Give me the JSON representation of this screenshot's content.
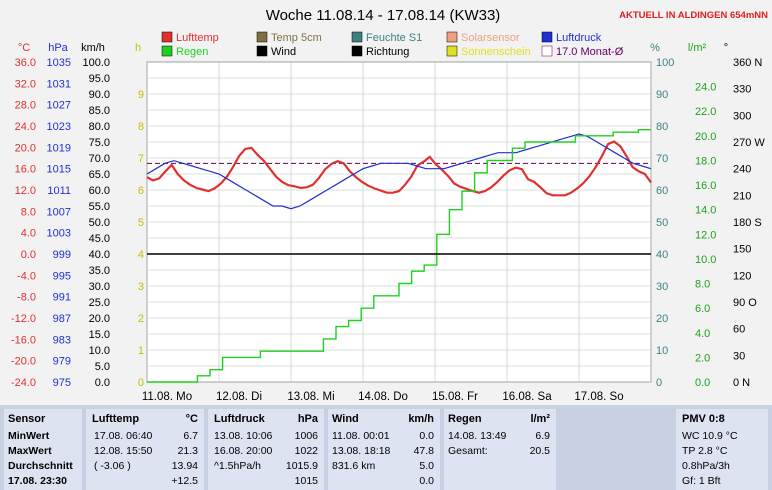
{
  "title": "Woche 11.08.14 - 17.08.14 (KW33)",
  "current_link": "AKTUELL IN ALDINGEN 654mNN",
  "legend": [
    {
      "label": "Lufttemp",
      "color": "#e03030"
    },
    {
      "label": "Temp 5cm",
      "color": "#807040"
    },
    {
      "label": "Feuchte S1",
      "color": "#408080"
    },
    {
      "label": "Solarsensor",
      "color": "#f0a080"
    },
    {
      "label": "Luftdruck",
      "color": "#2030d0"
    },
    {
      "label": "Regen",
      "color": "#20d020"
    },
    {
      "label": "Wind",
      "color": "#000000"
    },
    {
      "label": "Richtung",
      "color": "#000000"
    },
    {
      "label": "Sonnenschein",
      "color": "#e0e020"
    },
    {
      "label": "17.0 Monat-Ø",
      "color": "#600060"
    }
  ],
  "axis_units": {
    "temp": "°C",
    "pressure": "hPa",
    "wind": "km/h",
    "hours": "h",
    "humidity": "%",
    "rain": "l/m²",
    "direction": "°"
  },
  "chart_data": {
    "type": "line",
    "title": "Woche 11.08.14 - 17.08.14 (KW33)",
    "x_labels": [
      "11.08. Mo",
      "12.08. Di",
      "13.08. Mi",
      "14.08. Do",
      "15.08. Fr",
      "16.08. Sa",
      "17.08. So"
    ],
    "axes": {
      "temp": {
        "unit": "°C",
        "range": [
          -24.0,
          36.0
        ],
        "ticks": [
          "36.0",
          "32.0",
          "28.0",
          "24.0",
          "20.0",
          "16.0",
          "12.0",
          "8.0",
          "4.0",
          "0.0",
          "-4.0",
          "-8.0",
          "-12.0",
          "-16.0",
          "-20.0",
          "-24.0"
        ]
      },
      "pressure": {
        "unit": "hPa",
        "range": [
          975,
          1035
        ],
        "ticks": [
          "1035",
          "1031",
          "1027",
          "1023",
          "1019",
          "1015",
          "1011",
          "1007",
          "1003",
          "999",
          "995",
          "991",
          "987",
          "983",
          "979",
          "975"
        ]
      },
      "wind": {
        "unit": "km/h",
        "range": [
          0,
          100
        ],
        "ticks": [
          "100.0",
          "95.0",
          "90.0",
          "85.0",
          "80.0",
          "75.0",
          "70.0",
          "65.0",
          "60.0",
          "55.0",
          "50.0",
          "45.0",
          "40.0",
          "35.0",
          "30.0",
          "25.0",
          "20.0",
          "15.0",
          "10.0",
          "5.0",
          "0.0"
        ]
      },
      "hours": {
        "unit": "h",
        "range": [
          0,
          10
        ],
        "ticks": [
          "9",
          "8",
          "7",
          "6",
          "5",
          "4",
          "3",
          "2",
          "1",
          "0"
        ]
      },
      "humidity": {
        "unit": "%",
        "range": [
          0,
          100
        ],
        "ticks": [
          "100",
          "90",
          "80",
          "70",
          "60",
          "50",
          "40",
          "30",
          "20",
          "10",
          "0"
        ]
      },
      "rain": {
        "unit": "l/m²",
        "range": [
          0,
          26
        ],
        "ticks": [
          "24.0",
          "22.0",
          "20.0",
          "18.0",
          "16.0",
          "14.0",
          "12.0",
          "10.0",
          "8.0",
          "6.0",
          "4.0",
          "2.0",
          "0.0"
        ]
      },
      "direction": {
        "unit": "°",
        "range": [
          0,
          360
        ],
        "ticks": [
          "360 N",
          "330",
          "300",
          "270 W",
          "240",
          "210",
          "180 S",
          "150",
          "120",
          "90 O",
          "60",
          "30",
          "0 N"
        ]
      }
    },
    "monthly_avg_temp": 17.0,
    "series": [
      {
        "name": "Lufttemp",
        "values": [
          14.4,
          13.8,
          14.2,
          15.5,
          16.7,
          15.0,
          13.8,
          13.0,
          12.4,
          12.1,
          11.8,
          12.3,
          13.2,
          14.5,
          16.3,
          18.4,
          19.7,
          19.9,
          18.6,
          17.5,
          16.0,
          14.5,
          13.5,
          12.9,
          12.7,
          12.4,
          12.5,
          13.0,
          14.3,
          15.9,
          16.9,
          17.4,
          17.0,
          15.5,
          14.4,
          13.5,
          12.8,
          12.3,
          11.9,
          11.5,
          11.5,
          11.8,
          13.0,
          14.5,
          16.6,
          17.3,
          18.2,
          16.8,
          15.8,
          14.6,
          13.2,
          12.6,
          12.2,
          11.8,
          11.5,
          11.8,
          12.5,
          13.5,
          14.7,
          15.7,
          16.2,
          15.9,
          14.0,
          13.5,
          12.5,
          11.4,
          11.0,
          11.0,
          11.0,
          11.5,
          12.3,
          13.3,
          14.6,
          16.3,
          18.3,
          20.6,
          21.1,
          20.2,
          18.4,
          16.3,
          15.5,
          15.0,
          13.4
        ]
      },
      {
        "name": "Luftdruck",
        "values": [
          1014,
          1015,
          1016,
          1016.5,
          1016,
          1015.5,
          1015,
          1014.5,
          1014,
          1013,
          1012,
          1011,
          1010,
          1009,
          1008,
          1008,
          1007.5,
          1008,
          1009,
          1010,
          1011,
          1012,
          1013,
          1014,
          1015,
          1015.5,
          1016,
          1016,
          1016,
          1016,
          1015.5,
          1015,
          1015,
          1015,
          1015.5,
          1016,
          1016.5,
          1017,
          1017.5,
          1018,
          1018,
          1018,
          1018.5,
          1019,
          1019.5,
          1020,
          1020.5,
          1021,
          1021.5,
          1021,
          1020,
          1019,
          1018,
          1017,
          1016,
          1015.5,
          1015
        ]
      },
      {
        "name": "Regen",
        "values": [
          0,
          0,
          0,
          0,
          0.5,
          1.0,
          2.0,
          2.0,
          2.0,
          2.5,
          2.5,
          2.5,
          2.5,
          2.5,
          3.5,
          4.5,
          5.0,
          6.0,
          7.0,
          7.0,
          8.0,
          9.0,
          9.5,
          12.0,
          14.0,
          15.5,
          17.0,
          18.0,
          18.0,
          19.0,
          19.5,
          19.5,
          19.5,
          19.5,
          20.0,
          20.0,
          20.0,
          20.3,
          20.3,
          20.5,
          20.5
        ]
      }
    ]
  },
  "panel": {
    "sensor": {
      "header": "Sensor",
      "rows": [
        "MinWert",
        "MaxWert",
        "Durchschnitt",
        "17.08. 23:30"
      ]
    },
    "lufttemp": {
      "header": "Lufttemp",
      "unit": "°C",
      "rows": [
        [
          "17.08.  06:40",
          "6.7"
        ],
        [
          "12.08.  15:50",
          "21.3"
        ],
        [
          "( -3.06 )",
          "13.94"
        ],
        [
          "",
          "+12.5"
        ]
      ]
    },
    "luftdruck": {
      "header": "Luftdruck",
      "unit": "hPa",
      "rows": [
        [
          "13.08.  10:06",
          "1006"
        ],
        [
          "16.08.  20:00",
          "1022"
        ],
        [
          "^1.5hPa/h",
          "1015.9"
        ],
        [
          "",
          "1015"
        ]
      ]
    },
    "wind": {
      "header": "Wind",
      "unit": "km/h",
      "rows": [
        [
          "11.08.  00:01",
          "0.0"
        ],
        [
          "13.08.  18:18",
          "47.8"
        ],
        [
          "831.6 km",
          "5.0"
        ],
        [
          "",
          "0.0"
        ]
      ]
    },
    "regen": {
      "header": "Regen",
      "unit": "l/m²",
      "rows": [
        [
          "14.08.  13:49",
          "6.9"
        ],
        [
          "Gesamt:",
          "20.5"
        ],
        [
          "",
          ""
        ],
        [
          "",
          ""
        ]
      ]
    },
    "pmv": {
      "header": "PMV 0:8",
      "rows": [
        "WC 10.9 °C",
        "TP 2.8 °C",
        "0.8hPa/3h",
        "Gf: 1 Bft"
      ]
    }
  }
}
